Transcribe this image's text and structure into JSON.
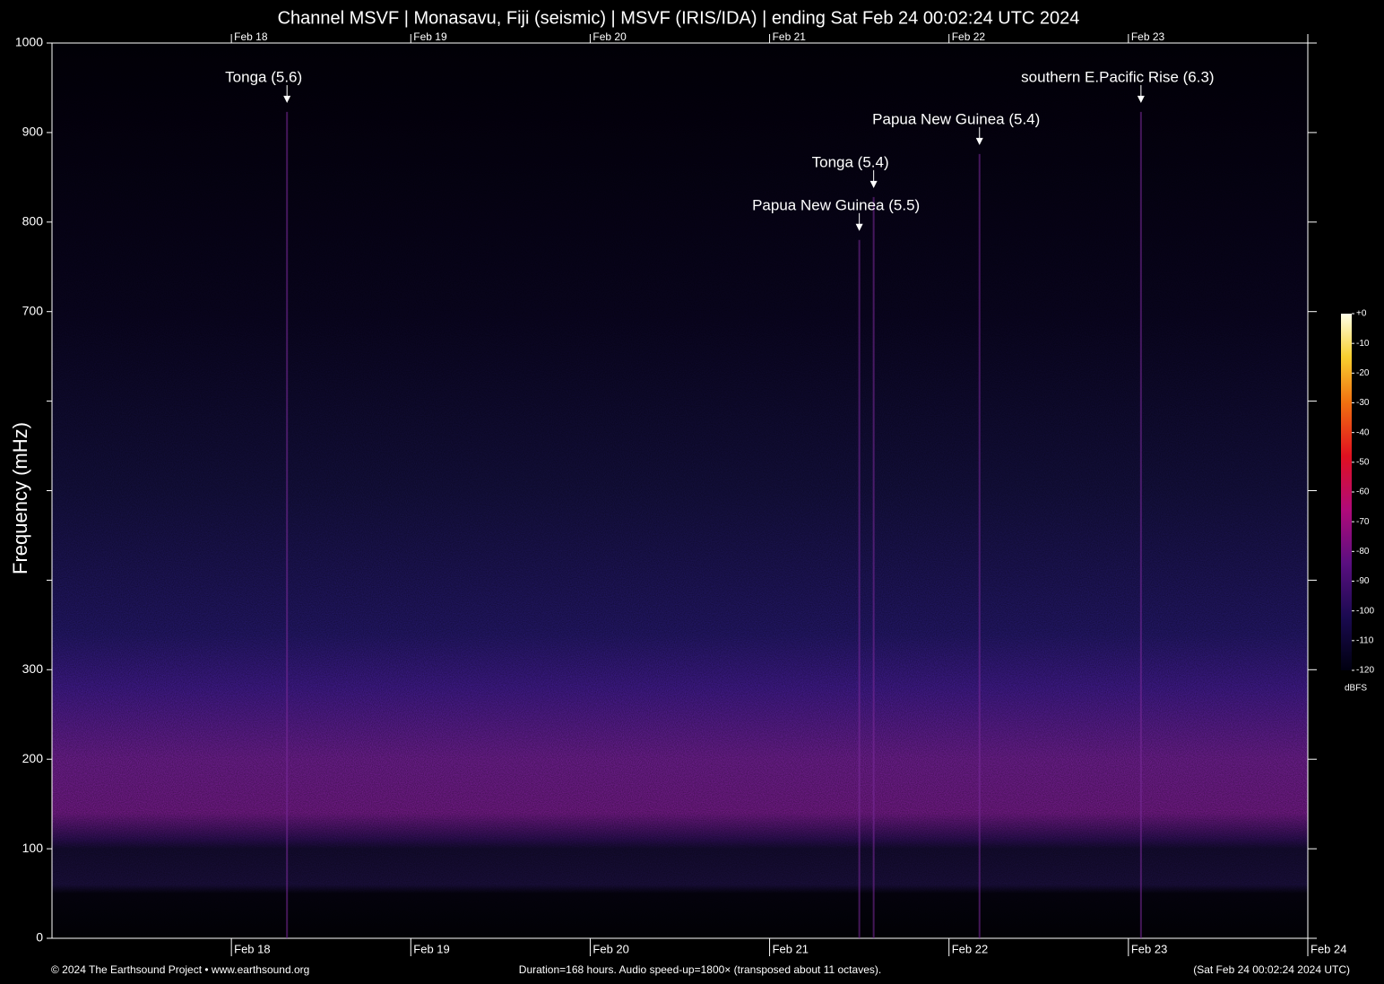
{
  "chart_data": {
    "type": "spectrogram",
    "title": "Channel MSVF | Monasavu, Fiji (seismic) | MSVF (IRIS/IDA) | ending Sat Feb 24 00:02:24 UTC 2024",
    "y_label": "Frequency (mHz)",
    "xlim": [
      0,
      7
    ],
    "xticks": [
      {
        "value": 1,
        "label": "Feb 18"
      },
      {
        "value": 2,
        "label": "Feb 19"
      },
      {
        "value": 3,
        "label": "Feb 20"
      },
      {
        "value": 4,
        "label": "Feb 21"
      },
      {
        "value": 5,
        "label": "Feb 22"
      },
      {
        "value": 6,
        "label": "Feb 23"
      },
      {
        "value": 7,
        "label": "Feb 24"
      }
    ],
    "ylim": [
      0,
      1000
    ],
    "yticks": [
      0,
      100,
      200,
      300,
      700,
      800,
      900,
      1000
    ],
    "minor_yticks": [
      400,
      500,
      600
    ],
    "annotations": [
      {
        "text": "Tonga (5.6)",
        "x": 1.31,
        "y": 933
      },
      {
        "text": "southern E.Pacific Rise (6.3)",
        "x": 6.07,
        "y": 933
      },
      {
        "text": "Papua New Guinea (5.4)",
        "x": 5.17,
        "y": 886
      },
      {
        "text": "Tonga (5.4)",
        "x": 4.58,
        "y": 838
      },
      {
        "text": "Papua New Guinea (5.5)",
        "x": 4.5,
        "y": 790
      }
    ],
    "colorbar": {
      "label": "dBFS",
      "lim": [
        -120,
        0
      ],
      "ticks": [
        {
          "value": 0,
          "label": "+0"
        },
        -10,
        -20,
        -30,
        -40,
        -50,
        -60,
        -70,
        -80,
        -90,
        -100,
        -110,
        -120
      ]
    },
    "footer_left": "© 2024 The Earthsound Project • www.earthsound.org",
    "footer_center": "Duration=168 hours. Audio speed-up=1800× (transposed about 11 octaves).",
    "footer_right": "(Sat Feb 24 00:02:24 2024 UTC)"
  }
}
